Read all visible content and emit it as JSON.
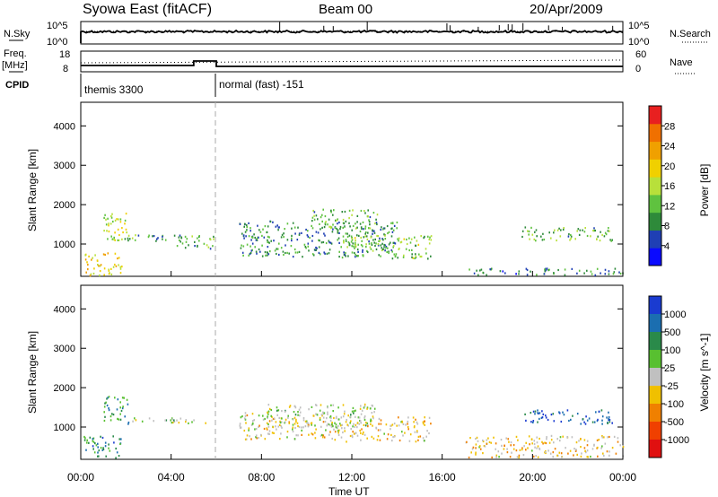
{
  "header": {
    "title": "Syowa East (fitACF)",
    "beam": "Beam 00",
    "date": "20/Apr/2009"
  },
  "top_panels": {
    "nsky_label": "N.Sky",
    "nsky_ticks": [
      "10^5",
      "10^0"
    ],
    "nsearch_label": "N.Search",
    "nsearch_ticks": [
      "10^5",
      "10^0"
    ],
    "freq_label_1": "Freq.",
    "freq_label_2": "[MHz]",
    "freq_ticks": [
      "18",
      "8"
    ],
    "nave_label": "Nave",
    "nave_ticks": [
      "60",
      "0"
    ],
    "cpid_label": "CPID",
    "cpid_segments": [
      {
        "label": "themis 3300",
        "start_hour": 0,
        "end_hour": 6
      },
      {
        "label": "normal (fast) -151",
        "start_hour": 6,
        "end_hour": 24
      }
    ]
  },
  "chart_data": [
    {
      "type": "heatmap",
      "panel": "power",
      "ylabel": "Slant Range [km]",
      "xlabel": "",
      "ylim": [
        180,
        4600
      ],
      "xlim": [
        0,
        24
      ],
      "yticks": [
        "1000",
        "2000",
        "3000",
        "4000"
      ],
      "colorbar": {
        "label": "Power [dB]",
        "ticks": [
          "4",
          "8",
          "12",
          "16",
          "20",
          "24",
          "28"
        ],
        "colors": [
          "#0a0aff",
          "#1f3fb4",
          "#2e8a3a",
          "#5fc23f",
          "#b8e03a",
          "#f0d000",
          "#f0a000",
          "#f07000",
          "#e82020"
        ]
      },
      "scatter_regions": [
        {
          "t0": 0.1,
          "t1": 1.8,
          "r0": 220,
          "r1": 800,
          "level": 0.65
        },
        {
          "t0": 1.0,
          "t1": 2.1,
          "r0": 1100,
          "r1": 1800,
          "level": 0.5
        },
        {
          "t0": 0.3,
          "t1": 4.5,
          "r0": 1100,
          "r1": 1250,
          "level": 0.3
        },
        {
          "t0": 4.2,
          "t1": 5.9,
          "r0": 900,
          "r1": 1250,
          "level": 0.35
        },
        {
          "t0": 7.0,
          "t1": 14.0,
          "r0": 700,
          "r1": 1600,
          "level": 0.25
        },
        {
          "t0": 10.2,
          "t1": 13.2,
          "r0": 1400,
          "r1": 1900,
          "level": 0.35
        },
        {
          "t0": 11.5,
          "t1": 15.5,
          "r0": 650,
          "r1": 1300,
          "level": 0.4
        },
        {
          "t0": 19.5,
          "t1": 23.5,
          "r0": 1100,
          "r1": 1450,
          "level": 0.35
        },
        {
          "t0": 17.0,
          "t1": 24.0,
          "r0": 220,
          "r1": 400,
          "level": 0.2
        }
      ]
    },
    {
      "type": "heatmap",
      "panel": "velocity",
      "ylabel": "Slant Range [km]",
      "xlabel": "Time UT",
      "ylim": [
        180,
        4600
      ],
      "xlim": [
        0,
        24
      ],
      "yticks": [
        "1000",
        "2000",
        "3000",
        "4000"
      ],
      "xticks": [
        "00:00",
        "04:00",
        "08:00",
        "12:00",
        "16:00",
        "20:00",
        "00:00"
      ],
      "colorbar": {
        "label": "Velocity [m s^-1]",
        "ticks": [
          "1000",
          "500",
          "100",
          "25",
          "-25",
          "-100",
          "-500",
          "-1000"
        ],
        "colors": [
          "#1a3bd0",
          "#1b6eb0",
          "#2a8a4a",
          "#58c030",
          "#c0c0c0",
          "#f0c000",
          "#f08000",
          "#f04000",
          "#e01010"
        ]
      },
      "scatter_regions": [
        {
          "t0": 0.1,
          "t1": 1.8,
          "r0": 220,
          "r1": 800,
          "level": 0.2
        },
        {
          "t0": 1.0,
          "t1": 2.1,
          "r0": 1100,
          "r1": 1800,
          "level": 0.25
        },
        {
          "t0": 2.0,
          "t1": 5.5,
          "r0": 1100,
          "r1": 1250,
          "level": 0.45
        },
        {
          "t0": 7.0,
          "t1": 11.5,
          "r0": 700,
          "r1": 1400,
          "level": 0.55
        },
        {
          "t0": 8.0,
          "t1": 13.0,
          "r0": 1000,
          "r1": 1600,
          "level": 0.47
        },
        {
          "t0": 11.5,
          "t1": 15.5,
          "r0": 650,
          "r1": 1300,
          "level": 0.6
        },
        {
          "t0": 19.5,
          "t1": 23.5,
          "r0": 1100,
          "r1": 1450,
          "level": 0.1
        },
        {
          "t0": 17.0,
          "t1": 24.0,
          "r0": 250,
          "r1": 800,
          "level": 0.6
        }
      ]
    }
  ]
}
